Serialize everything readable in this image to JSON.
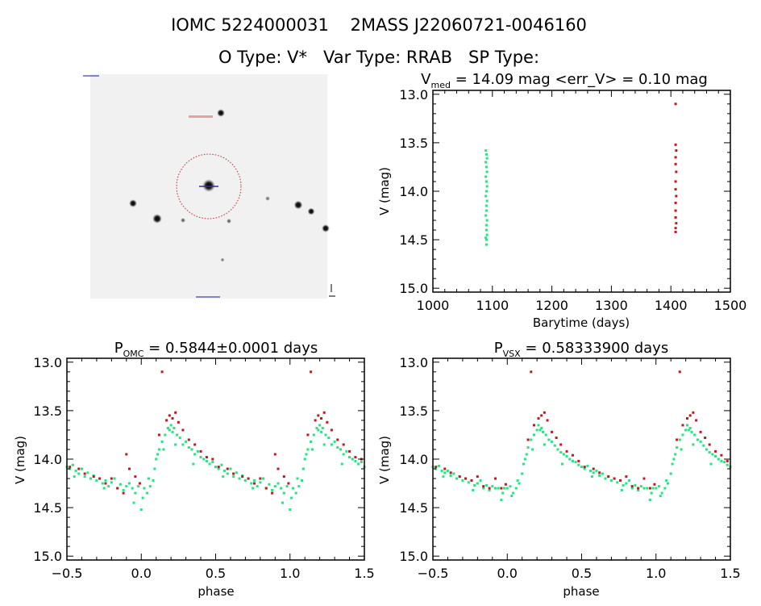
{
  "header": {
    "line1": "IOMC 5224000031    2MASS J22060721-0046160",
    "line2": "O Type: V*   Var Type: RRAB   SP Type:"
  },
  "colors": {
    "green_series": "#22e67e",
    "red_series": "#c0181c",
    "axes": "#000000",
    "finder_circle": "#cc2222",
    "finder_cross": "#3a2a8a"
  },
  "finder_image": {
    "type": "sky-image",
    "marker": "red dashed circle with cross on central star"
  },
  "chart_data": [
    {
      "type": "scatter",
      "title_main": "V",
      "title_sub": "med",
      "title_rest": " = 14.09 mag <err_V> = 0.10 mag",
      "xlabel": "Barytime (days)",
      "ylabel": "V (mag)",
      "xlim": [
        1000,
        1500
      ],
      "ylim": [
        12.96,
        15.04
      ],
      "y_inverted": true,
      "xticks": [
        "1000",
        "1100",
        "1200",
        "1300",
        "1400",
        "1500"
      ],
      "yticks": [
        "13.0",
        "13.5",
        "14.0",
        "14.5",
        "15.0"
      ],
      "grid": false,
      "series": [
        {
          "color": "green",
          "x": [
            1089,
            1090,
            1091,
            1089,
            1090,
            1091,
            1089,
            1090,
            1091,
            1090,
            1089,
            1091,
            1090,
            1090,
            1089,
            1091,
            1090,
            1090,
            1091,
            1089,
            1090,
            1090
          ],
          "y": [
            13.58,
            13.62,
            13.66,
            13.7,
            13.75,
            13.8,
            13.85,
            13.9,
            13.95,
            14.0,
            14.05,
            14.1,
            14.15,
            14.2,
            14.25,
            14.3,
            14.35,
            14.4,
            14.45,
            14.48,
            14.5,
            14.55
          ]
        },
        {
          "color": "red",
          "x": [
            1408,
            1408,
            1409,
            1408,
            1408,
            1409,
            1408,
            1408,
            1409,
            1408,
            1408,
            1408,
            1409,
            1408,
            1408
          ],
          "y": [
            13.1,
            13.52,
            13.58,
            13.65,
            13.72,
            13.8,
            13.9,
            13.98,
            14.05,
            14.12,
            14.2,
            14.27,
            14.33,
            14.38,
            14.42
          ]
        }
      ]
    },
    {
      "type": "scatter",
      "title_main": "P",
      "title_sub": "OMC",
      "title_rest": " = 0.5844±0.0001 days",
      "xlabel": "phase",
      "ylabel": "V (mag)",
      "xlim": [
        -0.5,
        1.5
      ],
      "ylim": [
        12.96,
        15.04
      ],
      "y_inverted": true,
      "xticks": [
        "-0.5",
        "0.0",
        "0.5",
        "1.0",
        "1.5"
      ],
      "yticks": [
        "13.0",
        "13.5",
        "14.0",
        "14.5",
        "15.0"
      ],
      "grid": false,
      "series": [
        {
          "color": "green",
          "x": [
            0.0,
            0.02,
            0.04,
            0.06,
            0.08,
            0.09,
            0.1,
            0.11,
            0.12,
            0.14,
            0.16,
            0.18,
            0.19,
            0.2,
            0.21,
            0.22,
            0.24,
            0.26,
            0.28,
            0.3,
            0.32,
            0.34,
            0.36,
            0.38,
            0.4,
            0.42,
            0.44,
            0.46,
            0.48,
            0.5,
            0.52,
            0.54,
            0.56,
            0.58,
            0.6,
            0.62,
            0.64,
            0.66,
            0.68,
            0.7,
            0.72,
            0.74,
            0.76,
            0.78,
            0.8,
            0.82,
            0.84,
            0.86,
            0.88,
            0.9,
            0.92,
            0.94,
            0.96,
            0.98,
            0.01,
            0.05,
            0.23,
            0.35,
            0.55,
            0.75,
            0.95,
            0.15
          ],
          "y": [
            14.52,
            14.3,
            14.35,
            14.28,
            14.22,
            14.1,
            14.0,
            13.95,
            13.9,
            13.82,
            13.75,
            13.68,
            13.7,
            13.65,
            13.72,
            13.68,
            13.75,
            13.78,
            13.85,
            13.82,
            13.88,
            13.9,
            13.95,
            13.92,
            13.98,
            14.0,
            14.02,
            14.05,
            14.03,
            14.08,
            14.1,
            14.06,
            14.12,
            14.15,
            14.1,
            14.18,
            14.14,
            14.2,
            14.17,
            14.22,
            14.2,
            14.25,
            14.22,
            14.28,
            14.24,
            14.2,
            14.3,
            14.26,
            14.32,
            14.28,
            14.25,
            14.3,
            14.35,
            14.28,
            14.4,
            14.2,
            13.85,
            14.05,
            14.18,
            14.3,
            14.45,
            13.9
          ]
        },
        {
          "color": "red",
          "x": [
            0.14,
            0.17,
            0.19,
            0.21,
            0.23,
            0.25,
            0.28,
            0.32,
            0.36,
            0.4,
            0.44,
            0.48,
            0.52,
            0.58,
            0.62,
            0.68,
            0.72,
            0.76,
            0.8,
            0.84,
            0.88,
            0.9,
            0.92,
            0.96,
            0.99,
            0.12
          ],
          "y": [
            13.1,
            13.6,
            13.55,
            13.58,
            13.52,
            13.62,
            13.7,
            13.8,
            13.85,
            13.92,
            13.98,
            14.0,
            14.08,
            14.1,
            14.15,
            14.18,
            14.2,
            14.25,
            14.2,
            14.3,
            14.35,
            13.95,
            14.1,
            14.18,
            14.25,
            13.75
          ]
        }
      ]
    },
    {
      "type": "scatter",
      "title_main": "P",
      "title_sub": "VSX",
      "title_rest": " = 0.58333900 days",
      "xlabel": "phase",
      "ylabel": "V (mag)",
      "xlim": [
        -0.5,
        1.5
      ],
      "ylim": [
        12.96,
        15.04
      ],
      "y_inverted": true,
      "xticks": [
        "-0.5",
        "0.0",
        "0.5",
        "1.0",
        "1.5"
      ],
      "yticks": [
        "13.0",
        "13.5",
        "14.0",
        "14.5",
        "15.0"
      ],
      "grid": false,
      "series": [
        {
          "color": "green",
          "x": [
            0.0,
            0.02,
            0.04,
            0.06,
            0.08,
            0.1,
            0.11,
            0.12,
            0.13,
            0.14,
            0.16,
            0.18,
            0.2,
            0.21,
            0.22,
            0.23,
            0.24,
            0.26,
            0.28,
            0.3,
            0.32,
            0.34,
            0.36,
            0.38,
            0.4,
            0.42,
            0.44,
            0.46,
            0.48,
            0.5,
            0.52,
            0.54,
            0.56,
            0.58,
            0.6,
            0.62,
            0.64,
            0.66,
            0.68,
            0.7,
            0.72,
            0.74,
            0.76,
            0.78,
            0.8,
            0.82,
            0.84,
            0.86,
            0.88,
            0.9,
            0.92,
            0.94,
            0.96,
            0.98,
            0.03,
            0.07,
            0.25,
            0.37,
            0.57,
            0.77,
            0.97,
            0.17
          ],
          "y": [
            14.3,
            14.28,
            14.35,
            14.3,
            14.25,
            14.15,
            14.05,
            14.0,
            13.95,
            13.88,
            13.8,
            13.75,
            13.7,
            13.65,
            13.7,
            13.68,
            13.72,
            13.75,
            13.8,
            13.82,
            13.86,
            13.9,
            13.93,
            13.95,
            13.97,
            14.0,
            14.02,
            14.03,
            14.06,
            14.08,
            14.1,
            14.07,
            14.12,
            14.14,
            14.12,
            14.17,
            14.15,
            14.2,
            14.18,
            14.22,
            14.2,
            14.24,
            14.22,
            14.27,
            14.25,
            14.22,
            14.3,
            14.27,
            14.32,
            14.28,
            14.3,
            14.3,
            14.42,
            14.3,
            14.38,
            14.22,
            13.85,
            14.05,
            14.18,
            14.32,
            14.35,
            13.9
          ]
        },
        {
          "color": "red",
          "x": [
            0.16,
            0.18,
            0.21,
            0.23,
            0.25,
            0.27,
            0.3,
            0.33,
            0.36,
            0.4,
            0.44,
            0.48,
            0.52,
            0.58,
            0.62,
            0.68,
            0.72,
            0.76,
            0.8,
            0.84,
            0.88,
            0.92,
            0.96,
            0.99,
            0.14
          ],
          "y": [
            13.1,
            13.65,
            13.58,
            13.55,
            13.52,
            13.6,
            13.72,
            13.78,
            13.85,
            13.92,
            13.96,
            14.02,
            14.08,
            14.1,
            14.14,
            14.18,
            14.2,
            14.22,
            14.18,
            14.28,
            14.3,
            14.2,
            14.3,
            14.26,
            13.8
          ]
        }
      ]
    }
  ]
}
